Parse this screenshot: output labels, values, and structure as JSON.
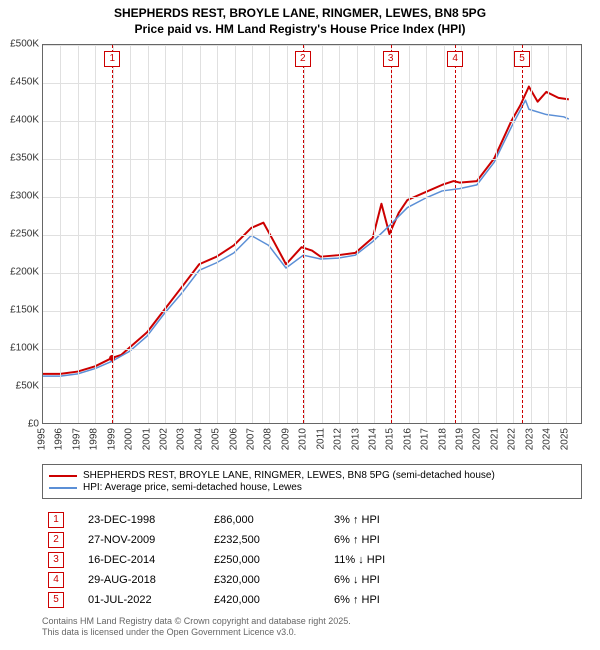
{
  "title_line1": "SHEPHERDS REST, BROYLE LANE, RINGMER, LEWES, BN8 5PG",
  "title_line2": "Price paid vs. HM Land Registry's House Price Index (HPI)",
  "chart": {
    "type": "line",
    "background_color": "#ffffff",
    "grid_color": "#e0e0e0",
    "border_color": "#666666",
    "ylim": [
      0,
      500000
    ],
    "ytick_step": 50000,
    "yticks": [
      "£0",
      "£50K",
      "£100K",
      "£150K",
      "£200K",
      "£250K",
      "£300K",
      "£350K",
      "£400K",
      "£450K",
      "£500K"
    ],
    "xlim": [
      1995,
      2026
    ],
    "xticks": [
      "1995",
      "1996",
      "1997",
      "1998",
      "1999",
      "2000",
      "2001",
      "2002",
      "2003",
      "2004",
      "2005",
      "2006",
      "2007",
      "2008",
      "2009",
      "2010",
      "2011",
      "2012",
      "2013",
      "2014",
      "2015",
      "2016",
      "2017",
      "2018",
      "2019",
      "2020",
      "2021",
      "2022",
      "2023",
      "2024",
      "2025"
    ],
    "series": [
      {
        "name": "SHEPHERDS REST, BROYLE LANE, RINGMER, LEWES, BN8 5PG (semi-detached house)",
        "color": "#cc0000",
        "line_width": 2,
        "data": [
          [
            1995,
            65000
          ],
          [
            1996,
            65000
          ],
          [
            1997,
            68000
          ],
          [
            1998,
            75000
          ],
          [
            1998.98,
            86000
          ],
          [
            1999.5,
            90000
          ],
          [
            2000,
            100000
          ],
          [
            2001,
            120000
          ],
          [
            2002,
            150000
          ],
          [
            2003,
            180000
          ],
          [
            2004,
            210000
          ],
          [
            2005,
            220000
          ],
          [
            2006,
            235000
          ],
          [
            2007,
            258000
          ],
          [
            2007.7,
            265000
          ],
          [
            2008.3,
            240000
          ],
          [
            2009,
            210000
          ],
          [
            2009.9,
            232500
          ],
          [
            2010.5,
            228000
          ],
          [
            2011,
            220000
          ],
          [
            2012,
            222000
          ],
          [
            2013,
            225000
          ],
          [
            2014,
            245000
          ],
          [
            2014.5,
            290000
          ],
          [
            2014.96,
            250000
          ],
          [
            2015.5,
            278000
          ],
          [
            2016,
            295000
          ],
          [
            2017,
            305000
          ],
          [
            2018,
            315000
          ],
          [
            2018.66,
            320000
          ],
          [
            2019,
            318000
          ],
          [
            2020,
            320000
          ],
          [
            2021,
            350000
          ],
          [
            2022,
            400000
          ],
          [
            2022.5,
            420000
          ],
          [
            2023,
            445000
          ],
          [
            2023.5,
            425000
          ],
          [
            2024,
            438000
          ],
          [
            2024.7,
            430000
          ],
          [
            2025.3,
            428000
          ]
        ]
      },
      {
        "name": "HPI: Average price, semi-detached house, Lewes",
        "color": "#5b8fd6",
        "line_width": 1.5,
        "data": [
          [
            1995,
            62000
          ],
          [
            1996,
            62000
          ],
          [
            1997,
            65000
          ],
          [
            1998,
            72000
          ],
          [
            1999,
            82000
          ],
          [
            2000,
            95000
          ],
          [
            2001,
            115000
          ],
          [
            2002,
            145000
          ],
          [
            2003,
            172000
          ],
          [
            2004,
            202000
          ],
          [
            2005,
            212000
          ],
          [
            2006,
            225000
          ],
          [
            2007,
            248000
          ],
          [
            2008,
            235000
          ],
          [
            2009,
            205000
          ],
          [
            2010,
            222000
          ],
          [
            2011,
            217000
          ],
          [
            2012,
            218000
          ],
          [
            2013,
            222000
          ],
          [
            2014,
            240000
          ],
          [
            2015,
            262000
          ],
          [
            2016,
            285000
          ],
          [
            2017,
            297000
          ],
          [
            2018,
            307000
          ],
          [
            2019,
            310000
          ],
          [
            2020,
            315000
          ],
          [
            2021,
            345000
          ],
          [
            2022,
            392000
          ],
          [
            2022.8,
            427000
          ],
          [
            2023,
            415000
          ],
          [
            2024,
            408000
          ],
          [
            2025,
            405000
          ],
          [
            2025.3,
            402000
          ]
        ]
      }
    ],
    "markers": [
      {
        "n": "1",
        "x": 1998.98,
        "date": "23-DEC-1998",
        "price": "£86,000",
        "hpi": "3% ↑ HPI"
      },
      {
        "n": "2",
        "x": 2009.91,
        "date": "27-NOV-2009",
        "price": "£232,500",
        "hpi": "6% ↑ HPI"
      },
      {
        "n": "3",
        "x": 2014.96,
        "date": "16-DEC-2014",
        "price": "£250,000",
        "hpi": "11% ↓ HPI"
      },
      {
        "n": "4",
        "x": 2018.66,
        "date": "29-AUG-2018",
        "price": "£320,000",
        "hpi": "6% ↓ HPI"
      },
      {
        "n": "5",
        "x": 2022.5,
        "date": "01-JUL-2022",
        "price": "£420,000",
        "hpi": "6% ↑ HPI"
      }
    ],
    "marker_color": "#cc0000",
    "title_fontsize": 12,
    "tick_fontsize": 10
  },
  "legend": {
    "items": [
      {
        "label": "SHEPHERDS REST, BROYLE LANE, RINGMER, LEWES, BN8 5PG (semi-detached house)",
        "color": "#cc0000"
      },
      {
        "label": "HPI: Average price, semi-detached house, Lewes",
        "color": "#5b8fd6"
      }
    ]
  },
  "footer_line1": "Contains HM Land Registry data © Crown copyright and database right 2025.",
  "footer_line2": "This data is licensed under the Open Government Licence v3.0."
}
